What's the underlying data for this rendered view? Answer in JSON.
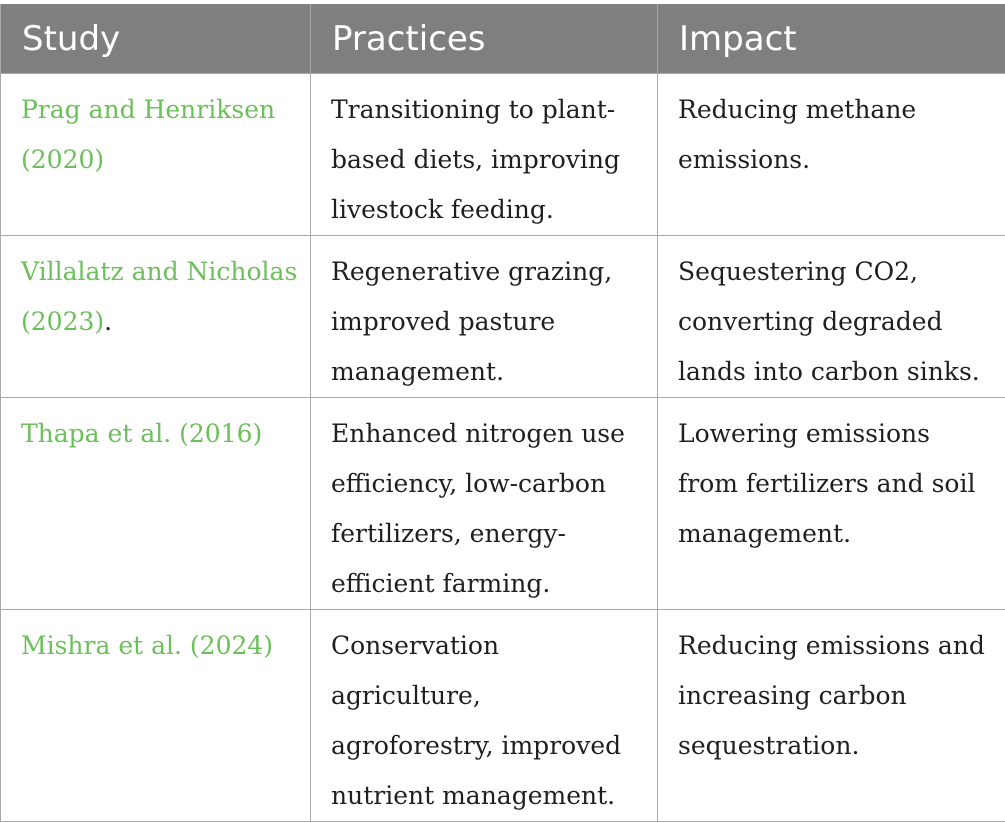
{
  "table": {
    "headers": [
      "Study",
      "Practices",
      "Impact"
    ],
    "rows": [
      {
        "study": "Prag and Henriksen (2020)",
        "study_suffix": "",
        "practices": "Transitioning to plant-based diets, improving livestock feeding.",
        "impact": "Reducing methane emissions."
      },
      {
        "study": "Villalatz and Nicholas (2023)",
        "study_suffix": ".",
        "practices": "Regenerative grazing, improved pasture management.",
        "impact": "Sequestering CO2, converting degraded lands into carbon sinks."
      },
      {
        "study": "Thapa et al. (2016)",
        "study_suffix": "",
        "practices": "Enhanced nitrogen use efficiency, low-carbon fertilizers, energy-efficient farming.",
        "impact": "Lowering emissions from fertilizers and soil management."
      },
      {
        "study": "Mishra et al. (2024)",
        "study_suffix": "",
        "practices": "Conservation agriculture, agroforestry, improved nutrient management.",
        "impact": "Reducing emissions and increasing carbon sequestration."
      }
    ]
  },
  "colors": {
    "header_bg": "#7f7f7f",
    "header_text": "#ffffff",
    "citation_link": "#6cbf5a",
    "body_text": "#1f1f1f",
    "grid": "#a9a9a9"
  }
}
